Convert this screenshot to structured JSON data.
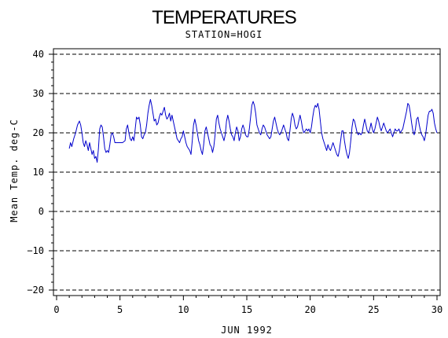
{
  "chart_data": {
    "type": "line",
    "title": "TEMPERATURES",
    "subtitle": "STATION=HOGI",
    "xlabel": "JUN 1992",
    "ylabel": "Mean Temp. deg-C",
    "xlim": [
      0,
      30
    ],
    "ylim": [
      -21,
      41
    ],
    "x_ticks": [
      0,
      5,
      10,
      15,
      20,
      25,
      30
    ],
    "y_ticks": [
      -20,
      -10,
      0,
      10,
      20,
      30,
      40
    ],
    "gridlines_y": [
      -20,
      -10,
      0,
      10,
      20,
      30,
      40
    ],
    "grid": "dashed horizontal",
    "line_color": "#0000cc",
    "series": [
      {
        "values": [
          [
            1.0,
            16.0
          ],
          [
            1.1,
            17.5
          ],
          [
            1.2,
            16.5
          ],
          [
            1.35,
            18.5
          ],
          [
            1.5,
            20.0
          ],
          [
            1.65,
            22.0
          ],
          [
            1.8,
            23.0
          ],
          [
            1.9,
            22.0
          ],
          [
            2.0,
            20.0
          ],
          [
            2.1,
            17.5
          ],
          [
            2.2,
            16.5
          ],
          [
            2.3,
            18.0
          ],
          [
            2.4,
            17.0
          ],
          [
            2.5,
            15.5
          ],
          [
            2.6,
            17.5
          ],
          [
            2.7,
            16.0
          ],
          [
            2.8,
            14.5
          ],
          [
            2.9,
            15.5
          ],
          [
            3.0,
            13.5
          ],
          [
            3.1,
            14.0
          ],
          [
            3.2,
            12.5
          ],
          [
            3.3,
            16.0
          ],
          [
            3.4,
            21.0
          ],
          [
            3.5,
            22.0
          ],
          [
            3.6,
            21.5
          ],
          [
            3.7,
            19.0
          ],
          [
            3.8,
            16.0
          ],
          [
            3.9,
            15.0
          ],
          [
            4.0,
            15.5
          ],
          [
            4.1,
            15.0
          ],
          [
            4.2,
            17.0
          ],
          [
            4.3,
            19.5
          ],
          [
            4.4,
            20.0
          ],
          [
            4.5,
            19.0
          ],
          [
            4.6,
            17.5
          ],
          [
            4.8,
            17.5
          ],
          [
            5.0,
            17.5
          ],
          [
            5.2,
            17.5
          ],
          [
            5.4,
            18.0
          ],
          [
            5.5,
            21.0
          ],
          [
            5.6,
            22.0
          ],
          [
            5.7,
            20.0
          ],
          [
            5.8,
            18.5
          ],
          [
            5.9,
            18.0
          ],
          [
            6.0,
            19.0
          ],
          [
            6.1,
            18.0
          ],
          [
            6.2,
            21.0
          ],
          [
            6.3,
            24.0
          ],
          [
            6.4,
            23.5
          ],
          [
            6.5,
            24.0
          ],
          [
            6.6,
            22.0
          ],
          [
            6.7,
            19.0
          ],
          [
            6.8,
            18.5
          ],
          [
            6.9,
            19.5
          ],
          [
            7.0,
            20.0
          ],
          [
            7.1,
            22.0
          ],
          [
            7.2,
            25.0
          ],
          [
            7.3,
            27.0
          ],
          [
            7.4,
            28.5
          ],
          [
            7.5,
            27.0
          ],
          [
            7.6,
            25.0
          ],
          [
            7.7,
            23.0
          ],
          [
            7.8,
            23.5
          ],
          [
            7.9,
            22.0
          ],
          [
            8.0,
            22.5
          ],
          [
            8.1,
            24.0
          ],
          [
            8.2,
            25.0
          ],
          [
            8.3,
            24.5
          ],
          [
            8.4,
            25.5
          ],
          [
            8.5,
            26.5
          ],
          [
            8.6,
            24.5
          ],
          [
            8.7,
            23.5
          ],
          [
            8.8,
            24.0
          ],
          [
            8.9,
            25.0
          ],
          [
            9.0,
            23.0
          ],
          [
            9.1,
            24.5
          ],
          [
            9.2,
            23.0
          ],
          [
            9.3,
            21.5
          ],
          [
            9.4,
            20.0
          ],
          [
            9.5,
            18.5
          ],
          [
            9.6,
            18.0
          ],
          [
            9.7,
            17.5
          ],
          [
            9.8,
            18.5
          ],
          [
            9.9,
            19.0
          ],
          [
            10.0,
            20.5
          ],
          [
            10.1,
            19.0
          ],
          [
            10.2,
            17.5
          ],
          [
            10.3,
            16.5
          ],
          [
            10.4,
            16.0
          ],
          [
            10.5,
            15.5
          ],
          [
            10.6,
            14.5
          ],
          [
            10.7,
            18.0
          ],
          [
            10.8,
            22.0
          ],
          [
            10.9,
            23.5
          ],
          [
            11.0,
            22.0
          ],
          [
            11.1,
            20.0
          ],
          [
            11.2,
            18.0
          ],
          [
            11.3,
            17.0
          ],
          [
            11.4,
            15.5
          ],
          [
            11.5,
            14.5
          ],
          [
            11.6,
            17.0
          ],
          [
            11.7,
            20.5
          ],
          [
            11.8,
            21.5
          ],
          [
            11.9,
            20.0
          ],
          [
            12.0,
            18.5
          ],
          [
            12.1,
            17.0
          ],
          [
            12.2,
            16.5
          ],
          [
            12.3,
            15.0
          ],
          [
            12.4,
            16.5
          ],
          [
            12.5,
            19.5
          ],
          [
            12.6,
            23.5
          ],
          [
            12.7,
            24.5
          ],
          [
            12.8,
            22.5
          ],
          [
            12.9,
            21.0
          ],
          [
            13.0,
            20.0
          ],
          [
            13.1,
            19.0
          ],
          [
            13.2,
            18.0
          ],
          [
            13.3,
            19.5
          ],
          [
            13.4,
            23.0
          ],
          [
            13.5,
            24.5
          ],
          [
            13.6,
            23.0
          ],
          [
            13.7,
            21.0
          ],
          [
            13.8,
            19.5
          ],
          [
            13.9,
            19.0
          ],
          [
            14.0,
            18.0
          ],
          [
            14.1,
            20.0
          ],
          [
            14.2,
            21.5
          ],
          [
            14.3,
            20.5
          ],
          [
            14.4,
            18.0
          ],
          [
            14.5,
            19.0
          ],
          [
            14.6,
            21.0
          ],
          [
            14.7,
            22.0
          ],
          [
            14.8,
            21.0
          ],
          [
            14.9,
            19.5
          ],
          [
            15.0,
            19.0
          ],
          [
            15.1,
            19.0
          ],
          [
            15.2,
            21.0
          ],
          [
            15.3,
            24.0
          ],
          [
            15.4,
            27.0
          ],
          [
            15.5,
            28.0
          ],
          [
            15.6,
            27.0
          ],
          [
            15.7,
            25.0
          ],
          [
            15.8,
            22.0
          ],
          [
            15.9,
            21.0
          ],
          [
            16.0,
            20.0
          ],
          [
            16.1,
            19.5
          ],
          [
            16.2,
            21.0
          ],
          [
            16.3,
            22.0
          ],
          [
            16.4,
            21.5
          ],
          [
            16.5,
            20.5
          ],
          [
            16.6,
            19.5
          ],
          [
            16.7,
            19.0
          ],
          [
            16.8,
            18.5
          ],
          [
            16.9,
            19.0
          ],
          [
            17.0,
            21.0
          ],
          [
            17.1,
            23.0
          ],
          [
            17.2,
            24.0
          ],
          [
            17.3,
            22.5
          ],
          [
            17.4,
            21.0
          ],
          [
            17.5,
            20.0
          ],
          [
            17.6,
            19.5
          ],
          [
            17.7,
            20.0
          ],
          [
            17.8,
            21.0
          ],
          [
            17.9,
            22.0
          ],
          [
            18.0,
            21.0
          ],
          [
            18.1,
            20.0
          ],
          [
            18.2,
            18.5
          ],
          [
            18.3,
            18.0
          ],
          [
            18.4,
            20.5
          ],
          [
            18.5,
            23.5
          ],
          [
            18.6,
            25.0
          ],
          [
            18.7,
            24.0
          ],
          [
            18.8,
            22.0
          ],
          [
            18.9,
            21.0
          ],
          [
            19.0,
            21.5
          ],
          [
            19.1,
            23.0
          ],
          [
            19.2,
            24.5
          ],
          [
            19.3,
            23.0
          ],
          [
            19.4,
            21.0
          ],
          [
            19.5,
            20.0
          ],
          [
            19.6,
            20.5
          ],
          [
            19.7,
            21.0
          ],
          [
            19.8,
            20.5
          ],
          [
            19.9,
            21.0
          ],
          [
            20.0,
            20.0
          ],
          [
            20.1,
            21.5
          ],
          [
            20.2,
            24.0
          ],
          [
            20.3,
            26.0
          ],
          [
            20.4,
            27.0
          ],
          [
            20.5,
            26.5
          ],
          [
            20.6,
            27.5
          ],
          [
            20.7,
            26.0
          ],
          [
            20.8,
            23.0
          ],
          [
            20.9,
            20.0
          ],
          [
            21.0,
            18.5
          ],
          [
            21.1,
            17.5
          ],
          [
            21.2,
            16.5
          ],
          [
            21.3,
            15.5
          ],
          [
            21.4,
            17.0
          ],
          [
            21.5,
            16.0
          ],
          [
            21.6,
            15.5
          ],
          [
            21.7,
            16.5
          ],
          [
            21.8,
            17.5
          ],
          [
            21.9,
            16.5
          ],
          [
            22.0,
            15.5
          ],
          [
            22.1,
            14.5
          ],
          [
            22.2,
            14.0
          ],
          [
            22.3,
            15.5
          ],
          [
            22.4,
            18.0
          ],
          [
            22.5,
            20.5
          ],
          [
            22.6,
            20.5
          ],
          [
            22.7,
            18.0
          ],
          [
            22.8,
            16.0
          ],
          [
            22.9,
            14.5
          ],
          [
            23.0,
            13.5
          ],
          [
            23.1,
            15.0
          ],
          [
            23.2,
            18.0
          ],
          [
            23.3,
            21.5
          ],
          [
            23.4,
            23.5
          ],
          [
            23.5,
            23.0
          ],
          [
            23.6,
            21.5
          ],
          [
            23.7,
            20.0
          ],
          [
            23.8,
            19.5
          ],
          [
            23.9,
            20.0
          ],
          [
            24.0,
            19.5
          ],
          [
            24.1,
            20.0
          ],
          [
            24.2,
            22.0
          ],
          [
            24.3,
            23.5
          ],
          [
            24.4,
            22.0
          ],
          [
            24.5,
            20.5
          ],
          [
            24.6,
            20.0
          ],
          [
            24.7,
            21.0
          ],
          [
            24.8,
            22.5
          ],
          [
            24.9,
            21.0
          ],
          [
            25.0,
            20.0
          ],
          [
            25.1,
            21.0
          ],
          [
            25.2,
            22.5
          ],
          [
            25.3,
            24.0
          ],
          [
            25.4,
            23.0
          ],
          [
            25.5,
            21.5
          ],
          [
            25.6,
            20.5
          ],
          [
            25.7,
            21.5
          ],
          [
            25.8,
            22.5
          ],
          [
            25.9,
            21.5
          ],
          [
            26.0,
            20.5
          ],
          [
            26.1,
            20.0
          ],
          [
            26.2,
            20.5
          ],
          [
            26.3,
            21.0
          ],
          [
            26.4,
            20.0
          ],
          [
            26.5,
            19.0
          ],
          [
            26.6,
            20.0
          ],
          [
            26.7,
            21.0
          ],
          [
            26.8,
            20.5
          ],
          [
            26.9,
            20.5
          ],
          [
            27.0,
            21.0
          ],
          [
            27.1,
            20.0
          ],
          [
            27.2,
            20.5
          ],
          [
            27.3,
            21.0
          ],
          [
            27.4,
            22.5
          ],
          [
            27.5,
            24.0
          ],
          [
            27.6,
            25.5
          ],
          [
            27.7,
            27.5
          ],
          [
            27.8,
            27.0
          ],
          [
            27.9,
            25.0
          ],
          [
            28.0,
            22.5
          ],
          [
            28.1,
            20.5
          ],
          [
            28.2,
            19.5
          ],
          [
            28.3,
            21.0
          ],
          [
            28.4,
            23.5
          ],
          [
            28.5,
            24.0
          ],
          [
            28.6,
            22.0
          ],
          [
            28.7,
            20.5
          ],
          [
            28.8,
            19.5
          ],
          [
            28.9,
            19.0
          ],
          [
            29.0,
            18.0
          ],
          [
            29.1,
            19.5
          ],
          [
            29.2,
            22.0
          ],
          [
            29.3,
            24.5
          ],
          [
            29.4,
            25.5
          ],
          [
            29.5,
            25.5
          ],
          [
            29.6,
            26.0
          ],
          [
            29.7,
            25.0
          ],
          [
            29.8,
            22.5
          ],
          [
            29.9,
            21.0
          ],
          [
            30.0,
            20.0
          ]
        ]
      }
    ]
  }
}
